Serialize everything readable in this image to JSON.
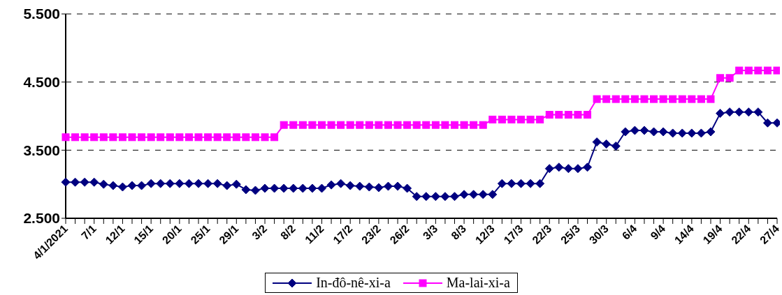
{
  "chart_data": {
    "type": "line",
    "categories": [
      "4/1/2021",
      null,
      null,
      "7/1",
      null,
      null,
      "12/1",
      null,
      null,
      "15/1",
      null,
      null,
      "20/1",
      null,
      null,
      "25/1",
      null,
      null,
      "29/1",
      null,
      null,
      "3/2",
      null,
      null,
      "8/2",
      null,
      null,
      "11/2",
      null,
      null,
      "17/2",
      null,
      null,
      "23/2",
      null,
      null,
      "26/2",
      null,
      null,
      "3/3",
      null,
      null,
      "8/3",
      null,
      null,
      "12/3",
      null,
      null,
      "17/3",
      null,
      null,
      "22/3",
      null,
      null,
      "25/3",
      null,
      null,
      "30/3",
      null,
      null,
      "6/4",
      null,
      null,
      "9/4",
      null,
      null,
      "14/4",
      null,
      null,
      "19/4",
      null,
      null,
      "22/4",
      null,
      null,
      "27/4"
    ],
    "series": [
      {
        "name": "In-đô-nê-xi-a",
        "color": "#000080",
        "marker": "diamond",
        "values": [
          3030,
          3030,
          3030,
          3030,
          3000,
          2980,
          2960,
          2980,
          2980,
          3010,
          3010,
          3010,
          3010,
          3010,
          3010,
          3010,
          3010,
          2980,
          3000,
          2920,
          2910,
          2940,
          2940,
          2940,
          2940,
          2940,
          2940,
          2940,
          2990,
          3010,
          2980,
          2970,
          2960,
          2950,
          2970,
          2970,
          2940,
          2820,
          2820,
          2820,
          2820,
          2820,
          2850,
          2850,
          2850,
          2850,
          3010,
          3010,
          3010,
          3010,
          3010,
          3230,
          3250,
          3230,
          3230,
          3250,
          3620,
          3590,
          3560,
          3770,
          3790,
          3790,
          3770,
          3770,
          3750,
          3750,
          3750,
          3750,
          3770,
          4040,
          4060,
          4060,
          4060,
          4060,
          3900,
          3900
        ]
      },
      {
        "name": "Ma-lai-xi-a",
        "color": "#ff00ff",
        "marker": "square",
        "values": [
          3690,
          3690,
          3690,
          3690,
          3690,
          3690,
          3690,
          3690,
          3690,
          3690,
          3690,
          3690,
          3690,
          3690,
          3690,
          3690,
          3690,
          3690,
          3690,
          3690,
          3690,
          3690,
          3690,
          3870,
          3870,
          3870,
          3870,
          3870,
          3870,
          3870,
          3870,
          3870,
          3870,
          3870,
          3870,
          3870,
          3870,
          3870,
          3870,
          3870,
          3870,
          3870,
          3870,
          3870,
          3870,
          3950,
          3950,
          3950,
          3950,
          3950,
          3950,
          4020,
          4020,
          4020,
          4020,
          4020,
          4250,
          4250,
          4250,
          4250,
          4250,
          4250,
          4250,
          4250,
          4250,
          4250,
          4250,
          4250,
          4250,
          4560,
          4560,
          4670,
          4670,
          4670,
          4670,
          4670
        ]
      }
    ],
    "ylim": [
      2500,
      5500
    ],
    "yticks": [
      {
        "value": 2500,
        "label": "2.500"
      },
      {
        "value": 3500,
        "label": "3.500"
      },
      {
        "value": 4500,
        "label": "4.500"
      },
      {
        "value": 5500,
        "label": "5.500"
      }
    ],
    "grid": "y",
    "legend": "bottom",
    "line_style": "solid"
  }
}
